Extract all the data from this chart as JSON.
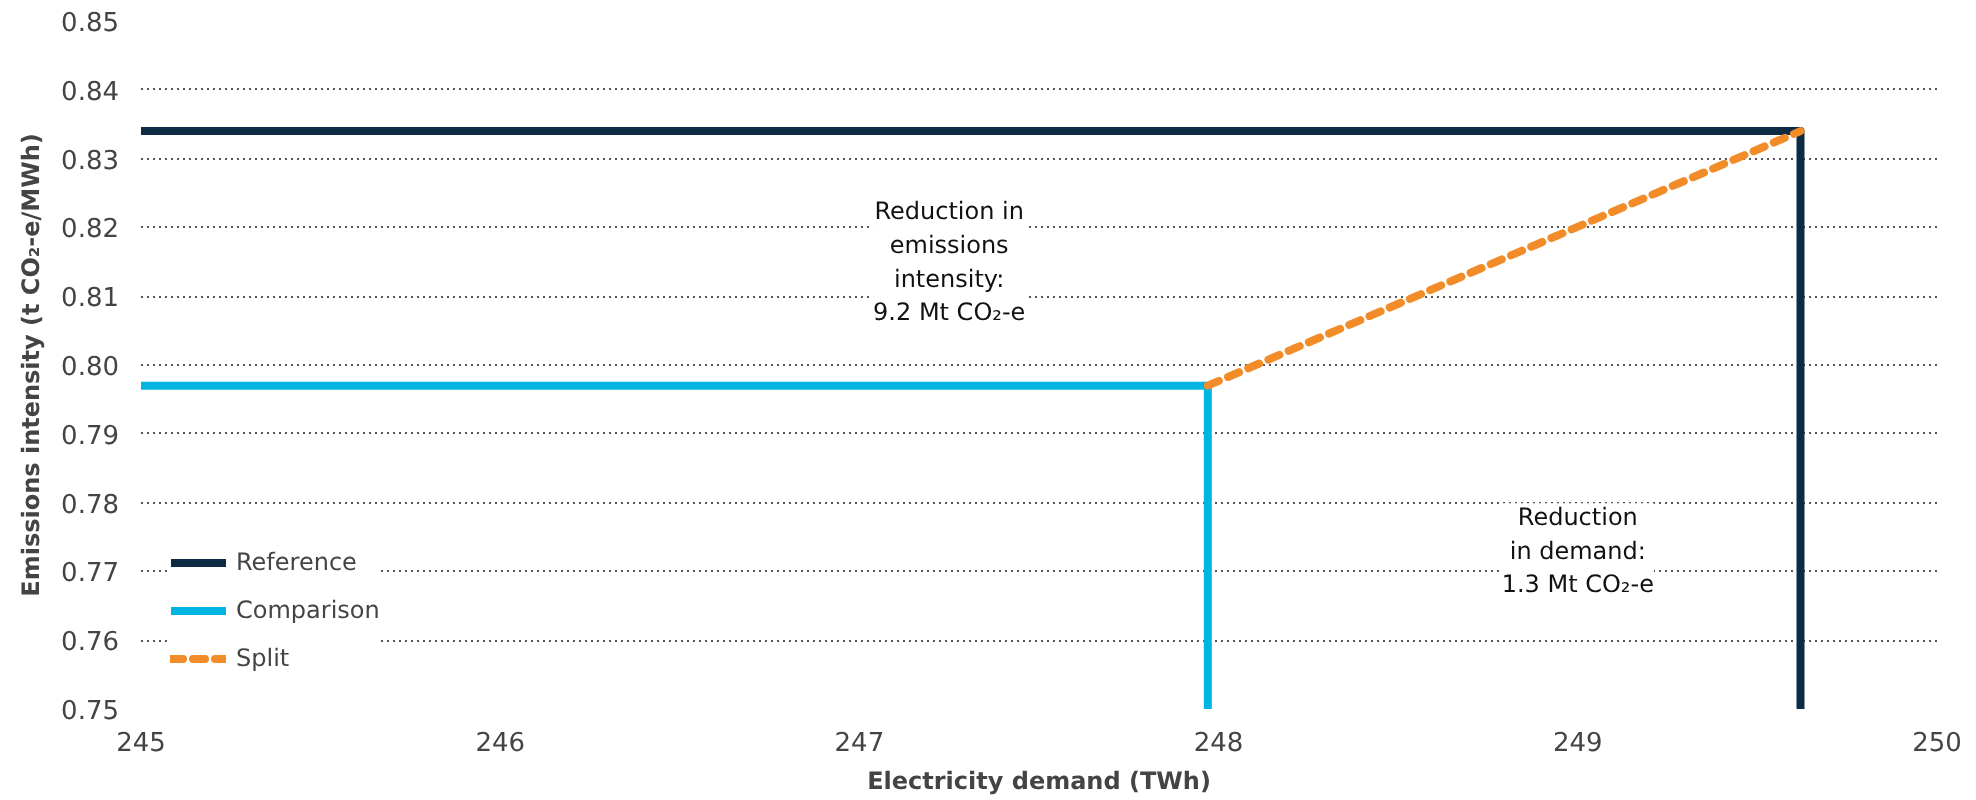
{
  "chart_data": {
    "type": "line",
    "xlabel": "Electricity demand (TWh)",
    "ylabel": "Emissions intensity (t CO₂-e/MWh)",
    "xlim": [
      245,
      250
    ],
    "xticks": [
      245,
      246,
      247,
      248,
      249,
      250
    ],
    "ylim": [
      0.75,
      0.85
    ],
    "yticks": [
      0.75,
      0.76,
      0.77,
      0.78,
      0.79,
      {
        "value": 0.8,
        "label": "0.80"
      },
      0.81,
      0.82,
      0.83,
      0.84,
      0.85
    ],
    "grid": "y",
    "legend": "bottom left",
    "line_style": "solid",
    "series": [
      {
        "name": "Reference",
        "color": "#0d2b45",
        "x": [
          245,
          249.62,
          249.62
        ],
        "values": [
          0.834,
          0.834,
          0.75
        ]
      },
      {
        "name": "Comparison",
        "color": "#00b5e2",
        "x": [
          245,
          247.97,
          247.97
        ],
        "values": [
          0.797,
          0.797,
          0.75
        ]
      },
      {
        "name": "Split",
        "color": "#f28c28",
        "x": [
          247.97,
          249.62
        ],
        "values": [
          0.797,
          0.834
        ],
        "line_style": "dashed"
      }
    ],
    "annotations": [
      "Reduction in\nemissions\nintensity:\n9.2 Mt CO₂-e",
      "Reduction\nin demand:\n1.3 Mt CO₂-e"
    ]
  }
}
